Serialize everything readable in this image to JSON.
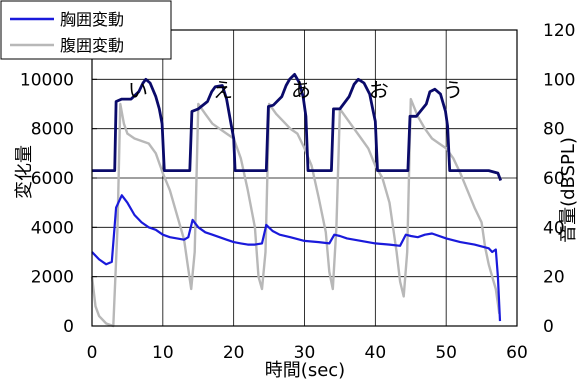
{
  "chart_data": {
    "type": "line",
    "xlabel": "時間(sec)",
    "ylabel_left": "変化量",
    "ylabel_right": "音量(dBSPL)",
    "xlim": [
      0,
      60
    ],
    "ylim_left": [
      0,
      12000
    ],
    "ylim_right": [
      0,
      120
    ],
    "x_ticks": [
      0,
      10,
      20,
      30,
      40,
      50,
      60
    ],
    "y_ticks_left": [
      0,
      2000,
      4000,
      6000,
      8000,
      10000,
      12000
    ],
    "y_ticks_right": [
      0,
      20,
      40,
      60,
      80,
      100,
      120
    ],
    "grid": true,
    "legend_position": "top-left",
    "annotations": [
      {
        "text": "い",
        "x": 6.5
      },
      {
        "text": "え",
        "x": 18.5
      },
      {
        "text": "あ",
        "x": 29.5
      },
      {
        "text": "お",
        "x": 40.5
      },
      {
        "text": "う",
        "x": 51.0
      }
    ],
    "series": [
      {
        "name": "胸囲変動",
        "axis": "left",
        "color": "#1a1adb",
        "x": [
          0,
          1,
          2,
          2.8,
          3.4,
          4.2,
          5,
          6,
          7,
          8,
          9,
          10,
          11,
          12,
          13,
          13.6,
          14.2,
          15,
          16,
          17,
          18,
          19,
          20,
          21,
          22,
          23,
          24,
          24.6,
          25.5,
          26.5,
          28,
          30,
          32,
          33.5,
          34.2,
          35,
          36,
          38,
          40,
          42,
          43.5,
          44.3,
          45,
          46,
          47,
          48,
          50,
          52,
          54,
          56,
          56.5,
          57,
          57.3,
          57.6
        ],
        "y": [
          3000,
          2700,
          2500,
          2600,
          4800,
          5300,
          5000,
          4500,
          4200,
          4000,
          3900,
          3700,
          3600,
          3550,
          3500,
          3600,
          4300,
          4000,
          3800,
          3700,
          3600,
          3500,
          3400,
          3350,
          3300,
          3300,
          3350,
          4100,
          3850,
          3700,
          3600,
          3450,
          3400,
          3350,
          3700,
          3650,
          3550,
          3450,
          3350,
          3300,
          3250,
          3700,
          3650,
          3600,
          3700,
          3750,
          3550,
          3400,
          3300,
          3150,
          3000,
          3100,
          2000,
          200
        ]
      },
      {
        "name": "腹囲変動",
        "axis": "right",
        "color": "#b8b8b8",
        "x": [
          0,
          0.5,
          1,
          2,
          3,
          3.6,
          4.0,
          4.5,
          5,
          6,
          7,
          8,
          9,
          10,
          11,
          12,
          13,
          13.5,
          14.0,
          14.5,
          15,
          16,
          17,
          18,
          19,
          20,
          21,
          22,
          23,
          23.5,
          24.0,
          24.5,
          25,
          26,
          27,
          28,
          29,
          30,
          31,
          32,
          33,
          33.5,
          34.0,
          34.5,
          35,
          36,
          37,
          38,
          39,
          40,
          41,
          42,
          43,
          43.5,
          44.0,
          44.5,
          45,
          46,
          47,
          48,
          49,
          50,
          51,
          52,
          53,
          54,
          55,
          55.5,
          56,
          56.5,
          57,
          57.5
        ],
        "y": [
          20,
          8,
          4,
          1,
          0,
          40,
          90,
          82,
          78,
          76,
          75,
          74,
          70,
          62,
          55,
          45,
          35,
          25,
          15,
          30,
          90,
          86,
          82,
          80,
          78,
          76,
          68,
          55,
          40,
          20,
          15,
          30,
          90,
          86,
          83,
          80,
          78,
          72,
          65,
          52,
          38,
          22,
          15,
          40,
          88,
          84,
          80,
          76,
          72,
          65,
          60,
          50,
          30,
          18,
          12,
          30,
          92,
          85,
          80,
          76,
          74,
          72,
          68,
          62,
          55,
          48,
          42,
          32,
          25,
          20,
          15,
          5
        ]
      },
      {
        "name": "",
        "axis": "left",
        "color": "#0a0a6a",
        "x": [
          0,
          3.2,
          3.4,
          4.2,
          5.5,
          6.6,
          7.2,
          7.6,
          8.2,
          9.0,
          9.5,
          9.9,
          10.2,
          12.0,
          13.8,
          14.1,
          15,
          16.3,
          16.9,
          17.4,
          18.4,
          19.0,
          19.5,
          20.0,
          20.2,
          24.6,
          24.9,
          25.6,
          26.8,
          27.4,
          27.9,
          28.6,
          29.3,
          29.8,
          30.2,
          30.5,
          33.8,
          34.1,
          35.0,
          36.3,
          37.0,
          37.6,
          38.4,
          39.2,
          39.7,
          40.0,
          40.3,
          44.6,
          44.9,
          45.8,
          47.2,
          47.7,
          48.4,
          49.2,
          49.9,
          50.2,
          50.5,
          54.0,
          56.0,
          57.3,
          57.7
        ],
        "y": [
          6300,
          6300,
          9100,
          9200,
          9200,
          9500,
          9850,
          10000,
          9850,
          9300,
          8800,
          8200,
          6300,
          6300,
          6300,
          8700,
          8800,
          9100,
          9500,
          9700,
          9750,
          9200,
          8400,
          7600,
          6300,
          6300,
          8900,
          8950,
          9300,
          9750,
          10000,
          10200,
          9850,
          9300,
          8500,
          6300,
          6300,
          8800,
          8800,
          9300,
          9800,
          10000,
          9850,
          9400,
          8700,
          8300,
          6300,
          6300,
          8500,
          8500,
          9000,
          9500,
          9600,
          9400,
          8700,
          8100,
          6300,
          6300,
          6300,
          6200,
          5900
        ]
      }
    ]
  }
}
